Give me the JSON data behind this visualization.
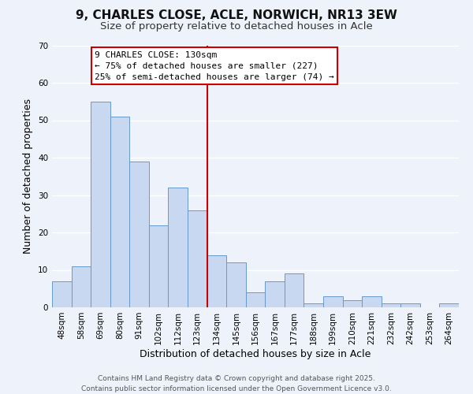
{
  "title": "9, CHARLES CLOSE, ACLE, NORWICH, NR13 3EW",
  "subtitle": "Size of property relative to detached houses in Acle",
  "xlabel": "Distribution of detached houses by size in Acle",
  "ylabel": "Number of detached properties",
  "bar_color": "#c8d8f0",
  "bar_edge_color": "#6699cc",
  "categories": [
    "48sqm",
    "58sqm",
    "69sqm",
    "80sqm",
    "91sqm",
    "102sqm",
    "112sqm",
    "123sqm",
    "134sqm",
    "145sqm",
    "156sqm",
    "167sqm",
    "177sqm",
    "188sqm",
    "199sqm",
    "210sqm",
    "221sqm",
    "232sqm",
    "242sqm",
    "253sqm",
    "264sqm"
  ],
  "values": [
    7,
    11,
    55,
    51,
    39,
    22,
    32,
    26,
    14,
    12,
    4,
    7,
    9,
    1,
    3,
    2,
    3,
    1,
    1,
    0,
    1
  ],
  "ylim": [
    0,
    70
  ],
  "yticks": [
    0,
    10,
    20,
    30,
    40,
    50,
    60,
    70
  ],
  "vline_index": 7,
  "vline_color": "#cc0000",
  "annotation_title": "9 CHARLES CLOSE: 130sqm",
  "annotation_line1": "← 75% of detached houses are smaller (227)",
  "annotation_line2": "25% of semi-detached houses are larger (74) →",
  "annotation_box_color": "#ffffff",
  "annotation_box_edge": "#cc0000",
  "footer_line1": "Contains HM Land Registry data © Crown copyright and database right 2025.",
  "footer_line2": "Contains public sector information licensed under the Open Government Licence v3.0.",
  "background_color": "#eef2fb",
  "grid_color": "#ffffff",
  "title_fontsize": 11,
  "subtitle_fontsize": 9.5,
  "axis_label_fontsize": 9,
  "tick_fontsize": 7.5,
  "annotation_fontsize": 8,
  "footer_fontsize": 6.5
}
